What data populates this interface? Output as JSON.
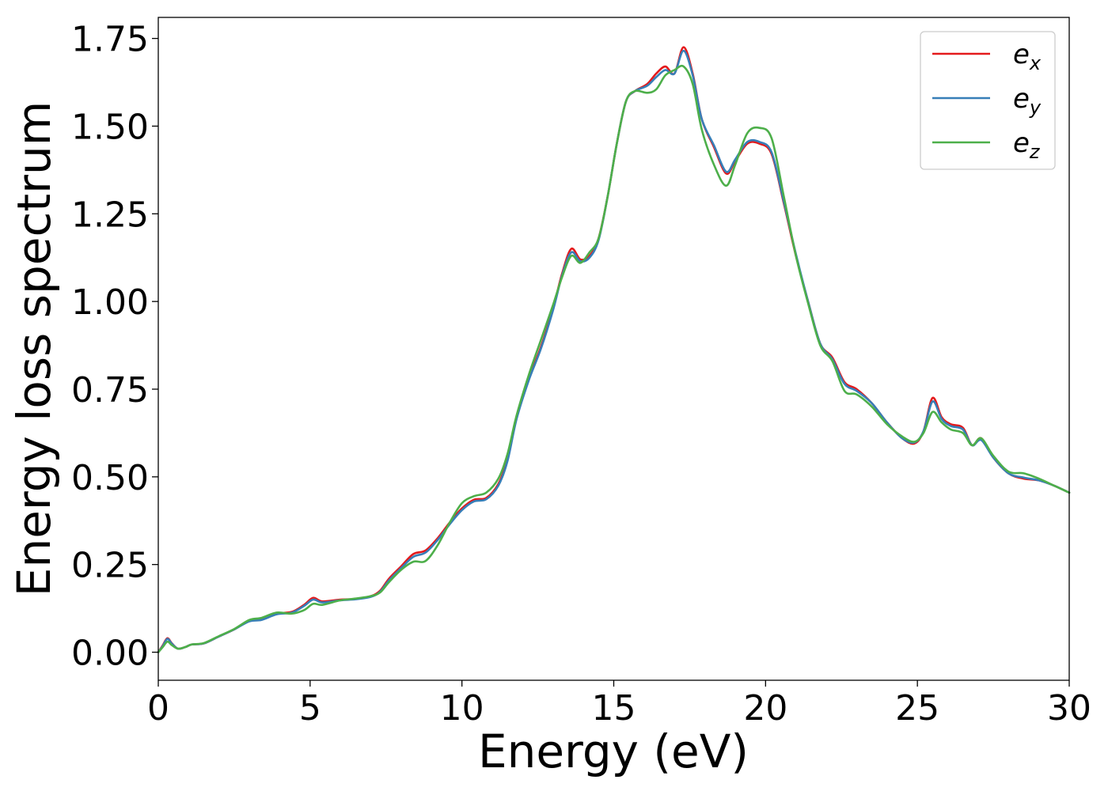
{
  "chart_data": {
    "type": "line",
    "xlabel": "Energy (eV)",
    "ylabel": "Energy loss spectrum",
    "xlim": [
      0,
      30
    ],
    "ylim": [
      -0.08,
      1.81
    ],
    "xticks": [
      0,
      5,
      10,
      15,
      20,
      25,
      30
    ],
    "xtick_labels": [
      "0",
      "5",
      "10",
      "15",
      "20",
      "25",
      "30"
    ],
    "yticks": [
      0,
      0.25,
      0.5,
      0.75,
      1.0,
      1.25,
      1.5,
      1.75
    ],
    "ytick_labels": [
      "0.00",
      "0.25",
      "0.50",
      "0.75",
      "1.00",
      "1.25",
      "1.50",
      "1.75"
    ],
    "grid": false,
    "legend_position": "top-right",
    "series": [
      {
        "name": "e_x",
        "legend_base": "e",
        "legend_sub": "x",
        "color": "#e41a1c",
        "points": [
          [
            0,
            0
          ],
          [
            0.15,
            0.02
          ],
          [
            0.3,
            0.04
          ],
          [
            0.45,
            0.025
          ],
          [
            0.65,
            0.01
          ],
          [
            0.9,
            0.015
          ],
          [
            1.1,
            0.022
          ],
          [
            1.5,
            0.025
          ],
          [
            2,
            0.045
          ],
          [
            2.5,
            0.065
          ],
          [
            3,
            0.09
          ],
          [
            3.4,
            0.095
          ],
          [
            3.9,
            0.11
          ],
          [
            4.4,
            0.115
          ],
          [
            4.8,
            0.135
          ],
          [
            5.1,
            0.155
          ],
          [
            5.4,
            0.145
          ],
          [
            6,
            0.15
          ],
          [
            6.5,
            0.152
          ],
          [
            7,
            0.16
          ],
          [
            7.3,
            0.175
          ],
          [
            7.6,
            0.21
          ],
          [
            8,
            0.245
          ],
          [
            8.4,
            0.28
          ],
          [
            8.8,
            0.29
          ],
          [
            9.2,
            0.325
          ],
          [
            9.6,
            0.37
          ],
          [
            10,
            0.41
          ],
          [
            10.4,
            0.435
          ],
          [
            10.8,
            0.44
          ],
          [
            11.2,
            0.48
          ],
          [
            11.5,
            0.55
          ],
          [
            11.8,
            0.67
          ],
          [
            12.2,
            0.78
          ],
          [
            12.6,
            0.87
          ],
          [
            13,
            0.98
          ],
          [
            13.3,
            1.08
          ],
          [
            13.6,
            1.15
          ],
          [
            13.9,
            1.12
          ],
          [
            14.2,
            1.13
          ],
          [
            14.5,
            1.18
          ],
          [
            14.8,
            1.3
          ],
          [
            15.1,
            1.45
          ],
          [
            15.4,
            1.57
          ],
          [
            15.7,
            1.6
          ],
          [
            16.1,
            1.62
          ],
          [
            16.4,
            1.65
          ],
          [
            16.7,
            1.67
          ],
          [
            17,
            1.65
          ],
          [
            17.3,
            1.725
          ],
          [
            17.6,
            1.65
          ],
          [
            17.9,
            1.52
          ],
          [
            18.3,
            1.44
          ],
          [
            18.7,
            1.365
          ],
          [
            19,
            1.4
          ],
          [
            19.4,
            1.45
          ],
          [
            19.8,
            1.45
          ],
          [
            20.2,
            1.42
          ],
          [
            20.6,
            1.28
          ],
          [
            21,
            1.13
          ],
          [
            21.4,
            1.0
          ],
          [
            21.8,
            0.88
          ],
          [
            22.2,
            0.84
          ],
          [
            22.6,
            0.77
          ],
          [
            23,
            0.75
          ],
          [
            23.5,
            0.71
          ],
          [
            24,
            0.655
          ],
          [
            24.5,
            0.61
          ],
          [
            24.9,
            0.595
          ],
          [
            25.2,
            0.63
          ],
          [
            25.5,
            0.725
          ],
          [
            25.8,
            0.67
          ],
          [
            26.1,
            0.65
          ],
          [
            26.5,
            0.64
          ],
          [
            26.8,
            0.59
          ],
          [
            27.1,
            0.61
          ],
          [
            27.5,
            0.555
          ],
          [
            28,
            0.51
          ],
          [
            28.5,
            0.495
          ],
          [
            29,
            0.49
          ],
          [
            29.5,
            0.475
          ],
          [
            30,
            0.455
          ]
        ]
      },
      {
        "name": "e_y",
        "legend_base": "e",
        "legend_sub": "y",
        "color": "#377eb8",
        "points": [
          [
            0,
            0
          ],
          [
            0.15,
            0.018
          ],
          [
            0.3,
            0.038
          ],
          [
            0.45,
            0.024
          ],
          [
            0.65,
            0.01
          ],
          [
            0.9,
            0.015
          ],
          [
            1.1,
            0.022
          ],
          [
            1.5,
            0.025
          ],
          [
            2,
            0.045
          ],
          [
            2.5,
            0.065
          ],
          [
            3,
            0.088
          ],
          [
            3.4,
            0.092
          ],
          [
            3.9,
            0.108
          ],
          [
            4.4,
            0.113
          ],
          [
            4.8,
            0.132
          ],
          [
            5.1,
            0.15
          ],
          [
            5.4,
            0.142
          ],
          [
            6,
            0.148
          ],
          [
            6.5,
            0.151
          ],
          [
            7,
            0.158
          ],
          [
            7.3,
            0.172
          ],
          [
            7.6,
            0.205
          ],
          [
            8,
            0.24
          ],
          [
            8.4,
            0.272
          ],
          [
            8.8,
            0.284
          ],
          [
            9.2,
            0.32
          ],
          [
            9.6,
            0.365
          ],
          [
            10,
            0.405
          ],
          [
            10.4,
            0.43
          ],
          [
            10.8,
            0.436
          ],
          [
            11.2,
            0.475
          ],
          [
            11.5,
            0.545
          ],
          [
            11.8,
            0.665
          ],
          [
            12.2,
            0.775
          ],
          [
            12.6,
            0.865
          ],
          [
            13,
            0.975
          ],
          [
            13.3,
            1.075
          ],
          [
            13.6,
            1.14
          ],
          [
            13.9,
            1.115
          ],
          [
            14.2,
            1.125
          ],
          [
            14.5,
            1.175
          ],
          [
            14.8,
            1.3
          ],
          [
            15.1,
            1.45
          ],
          [
            15.4,
            1.57
          ],
          [
            15.7,
            1.6
          ],
          [
            16.1,
            1.615
          ],
          [
            16.4,
            1.64
          ],
          [
            16.7,
            1.66
          ],
          [
            17,
            1.65
          ],
          [
            17.3,
            1.715
          ],
          [
            17.6,
            1.645
          ],
          [
            17.9,
            1.52
          ],
          [
            18.3,
            1.445
          ],
          [
            18.7,
            1.37
          ],
          [
            19,
            1.405
          ],
          [
            19.4,
            1.455
          ],
          [
            19.8,
            1.455
          ],
          [
            20.2,
            1.425
          ],
          [
            20.6,
            1.285
          ],
          [
            21,
            1.135
          ],
          [
            21.4,
            1.0
          ],
          [
            21.8,
            0.88
          ],
          [
            22.2,
            0.835
          ],
          [
            22.6,
            0.765
          ],
          [
            23,
            0.745
          ],
          [
            23.5,
            0.71
          ],
          [
            24,
            0.655
          ],
          [
            24.5,
            0.61
          ],
          [
            24.9,
            0.598
          ],
          [
            25.2,
            0.63
          ],
          [
            25.5,
            0.715
          ],
          [
            25.8,
            0.665
          ],
          [
            26.1,
            0.645
          ],
          [
            26.5,
            0.635
          ],
          [
            26.8,
            0.59
          ],
          [
            27.1,
            0.605
          ],
          [
            27.5,
            0.555
          ],
          [
            28,
            0.51
          ],
          [
            28.5,
            0.498
          ],
          [
            29,
            0.49
          ],
          [
            29.5,
            0.475
          ],
          [
            30,
            0.455
          ]
        ]
      },
      {
        "name": "e_z",
        "legend_base": "e",
        "legend_sub": "z",
        "color": "#4daf4a",
        "points": [
          [
            0,
            0
          ],
          [
            0.15,
            0.015
          ],
          [
            0.3,
            0.03
          ],
          [
            0.45,
            0.02
          ],
          [
            0.65,
            0.01
          ],
          [
            0.9,
            0.015
          ],
          [
            1.1,
            0.022
          ],
          [
            1.5,
            0.026
          ],
          [
            2,
            0.046
          ],
          [
            2.5,
            0.066
          ],
          [
            3,
            0.092
          ],
          [
            3.4,
            0.098
          ],
          [
            3.9,
            0.113
          ],
          [
            4.4,
            0.11
          ],
          [
            4.8,
            0.12
          ],
          [
            5.1,
            0.138
          ],
          [
            5.4,
            0.135
          ],
          [
            6,
            0.148
          ],
          [
            6.5,
            0.153
          ],
          [
            7,
            0.16
          ],
          [
            7.3,
            0.17
          ],
          [
            7.6,
            0.2
          ],
          [
            8,
            0.235
          ],
          [
            8.4,
            0.258
          ],
          [
            8.8,
            0.26
          ],
          [
            9.2,
            0.305
          ],
          [
            9.6,
            0.37
          ],
          [
            10,
            0.425
          ],
          [
            10.4,
            0.445
          ],
          [
            10.8,
            0.455
          ],
          [
            11.2,
            0.495
          ],
          [
            11.5,
            0.565
          ],
          [
            11.8,
            0.675
          ],
          [
            12.2,
            0.79
          ],
          [
            12.6,
            0.89
          ],
          [
            13,
            0.99
          ],
          [
            13.3,
            1.07
          ],
          [
            13.6,
            1.13
          ],
          [
            13.9,
            1.11
          ],
          [
            14.2,
            1.14
          ],
          [
            14.5,
            1.18
          ],
          [
            14.8,
            1.3
          ],
          [
            15.1,
            1.45
          ],
          [
            15.4,
            1.57
          ],
          [
            15.7,
            1.6
          ],
          [
            16.1,
            1.595
          ],
          [
            16.4,
            1.605
          ],
          [
            16.7,
            1.645
          ],
          [
            17,
            1.66
          ],
          [
            17.3,
            1.67
          ],
          [
            17.6,
            1.62
          ],
          [
            17.9,
            1.49
          ],
          [
            18.3,
            1.39
          ],
          [
            18.7,
            1.33
          ],
          [
            19,
            1.39
          ],
          [
            19.4,
            1.48
          ],
          [
            19.8,
            1.495
          ],
          [
            20.2,
            1.465
          ],
          [
            20.6,
            1.3
          ],
          [
            21,
            1.13
          ],
          [
            21.4,
            0.995
          ],
          [
            21.8,
            0.875
          ],
          [
            22.2,
            0.83
          ],
          [
            22.6,
            0.745
          ],
          [
            23,
            0.735
          ],
          [
            23.5,
            0.7
          ],
          [
            24,
            0.65
          ],
          [
            24.5,
            0.615
          ],
          [
            24.9,
            0.6
          ],
          [
            25.2,
            0.625
          ],
          [
            25.5,
            0.685
          ],
          [
            25.8,
            0.655
          ],
          [
            26.1,
            0.635
          ],
          [
            26.5,
            0.625
          ],
          [
            26.8,
            0.59
          ],
          [
            27.1,
            0.61
          ],
          [
            27.5,
            0.56
          ],
          [
            28,
            0.515
          ],
          [
            28.5,
            0.51
          ],
          [
            29,
            0.495
          ],
          [
            29.5,
            0.475
          ],
          [
            30,
            0.455
          ]
        ]
      }
    ]
  }
}
